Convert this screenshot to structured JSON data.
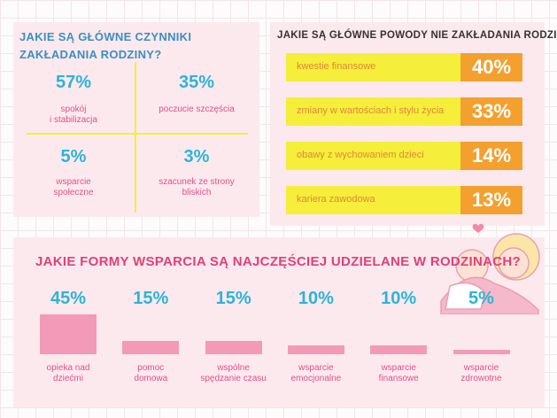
{
  "chart_data": [
    {
      "type": "stat-grid",
      "title": "JAKIE SĄ GŁÓWNE CZYNNIKI ZAKŁADANIA RODZINY?",
      "categories": [
        "spokój\ni stabilizacja",
        "poczucie szczęścia",
        "wsparcie\nspołeczne",
        "szacunek ze strony\nbliskich"
      ],
      "values": [
        57,
        35,
        5,
        3
      ],
      "value_labels": [
        "57%",
        "35%",
        "5%",
        "3%"
      ],
      "color": "#2db4d6"
    },
    {
      "type": "label-bar",
      "title": "JAKIE SĄ GŁÓWNE POWODY NIE ZAKŁADANIA RODZINY?",
      "categories": [
        "kwestie finansowe",
        "zmiany w wartościach i stylu życia",
        "obawy z wychowaniem dzieci",
        "kariera zawodowa"
      ],
      "values": [
        40,
        33,
        14,
        13
      ],
      "value_labels": [
        "40%",
        "33%",
        "14%",
        "13%"
      ],
      "color": "#f5ee3a",
      "label_color": "#f3a02e"
    },
    {
      "type": "bar",
      "title": "JAKIE FORMY WSPARCIA SĄ NAJCZĘŚCIEJ UDZIELANE W RODZINACH?",
      "categories": [
        "opieka nad\ndziećmi",
        "pomoc\ndomowa",
        "wspólne\nspędzanie czasu",
        "wsparcie\nemocjonalne",
        "wsparcie\nfinansowe",
        "wsparcie\nzdrowotne"
      ],
      "values": [
        45,
        15,
        15,
        10,
        10,
        5
      ],
      "value_labels": [
        "45%",
        "15%",
        "15%",
        "10%",
        "10%",
        "5%"
      ],
      "color": "#f29ab8",
      "label_color": "#2db4d6"
    }
  ]
}
